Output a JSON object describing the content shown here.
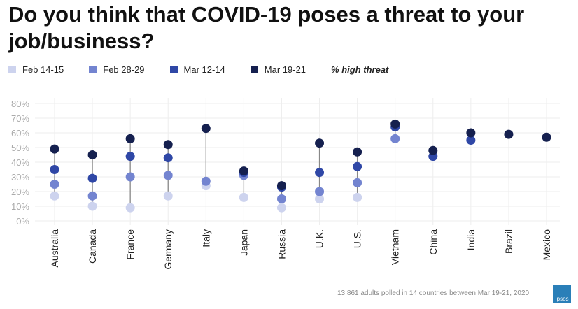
{
  "chart_data": {
    "type": "dot",
    "title": "Do you think that COVID-19 poses a threat to your job/business?",
    "legend_note": "% high threat",
    "legend_position": "top",
    "ylim": [
      0,
      80
    ],
    "yticks": [
      "0%",
      "10%",
      "20%",
      "30%",
      "40%",
      "50%",
      "60%",
      "70%",
      "80%"
    ],
    "grid": true,
    "categories": [
      "Australia",
      "Canada",
      "France",
      "Germany",
      "Italy",
      "Japan",
      "Russia",
      "U.K.",
      "U.S.",
      "Vietnam",
      "China",
      "India",
      "Brazil",
      "Mexico"
    ],
    "series": [
      {
        "name": "Feb 14-15",
        "color": "#cdd3ee",
        "values": [
          17,
          10,
          9,
          17,
          24,
          16,
          9,
          15,
          16,
          null,
          null,
          null,
          null,
          null
        ]
      },
      {
        "name": "Feb 28-29",
        "color": "#7384d0",
        "values": [
          25,
          17,
          30,
          31,
          27,
          31,
          15,
          20,
          26,
          56,
          null,
          null,
          null,
          null
        ]
      },
      {
        "name": "Mar 12-14",
        "color": "#2f47a6",
        "values": [
          35,
          29,
          44,
          43,
          null,
          33,
          23,
          33,
          37,
          64,
          44,
          55,
          null,
          null
        ]
      },
      {
        "name": "Mar 19-21",
        "color": "#15204f",
        "values": [
          49,
          45,
          56,
          52,
          63,
          34,
          24,
          53,
          47,
          66,
          48,
          60,
          59,
          57
        ]
      }
    ]
  },
  "footer": "13,861 adults polled in 14 countries between Mar 19-21, 2020",
  "logo": "Ipsos"
}
